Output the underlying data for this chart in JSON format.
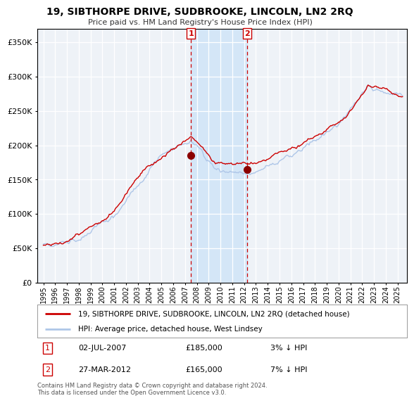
{
  "title": "19, SIBTHORPE DRIVE, SUDBROOKE, LINCOLN, LN2 2RQ",
  "subtitle": "Price paid vs. HM Land Registry's House Price Index (HPI)",
  "legend_line1": "19, SIBTHORPE DRIVE, SUDBROOKE, LINCOLN, LN2 2RQ (detached house)",
  "legend_line2": "HPI: Average price, detached house, West Lindsey",
  "annotation1_label": "1",
  "annotation1_date": "02-JUL-2007",
  "annotation1_price": "£185,000",
  "annotation1_hpi": "3% ↓ HPI",
  "annotation2_label": "2",
  "annotation2_date": "27-MAR-2012",
  "annotation2_price": "£165,000",
  "annotation2_hpi": "7% ↓ HPI",
  "footnote": "Contains HM Land Registry data © Crown copyright and database right 2024.\nThis data is licensed under the Open Government Licence v3.0.",
  "hpi_color": "#aec6e8",
  "price_color": "#cc0000",
  "marker_color": "#8b0000",
  "vline_color": "#cc0000",
  "shade_color": "#d0e4f7",
  "background_color": "#eef2f7",
  "grid_color": "#ffffff",
  "ylim": [
    0,
    370000
  ],
  "yticks": [
    0,
    50000,
    100000,
    150000,
    200000,
    250000,
    300000,
    350000
  ],
  "sale1_x": 2007.5,
  "sale1_y": 185000,
  "sale2_x": 2012.25,
  "sale2_y": 165000,
  "shade_x1": 2007.5,
  "shade_x2": 2012.25,
  "xlim_left": 1994.5,
  "xlim_right": 2025.8
}
